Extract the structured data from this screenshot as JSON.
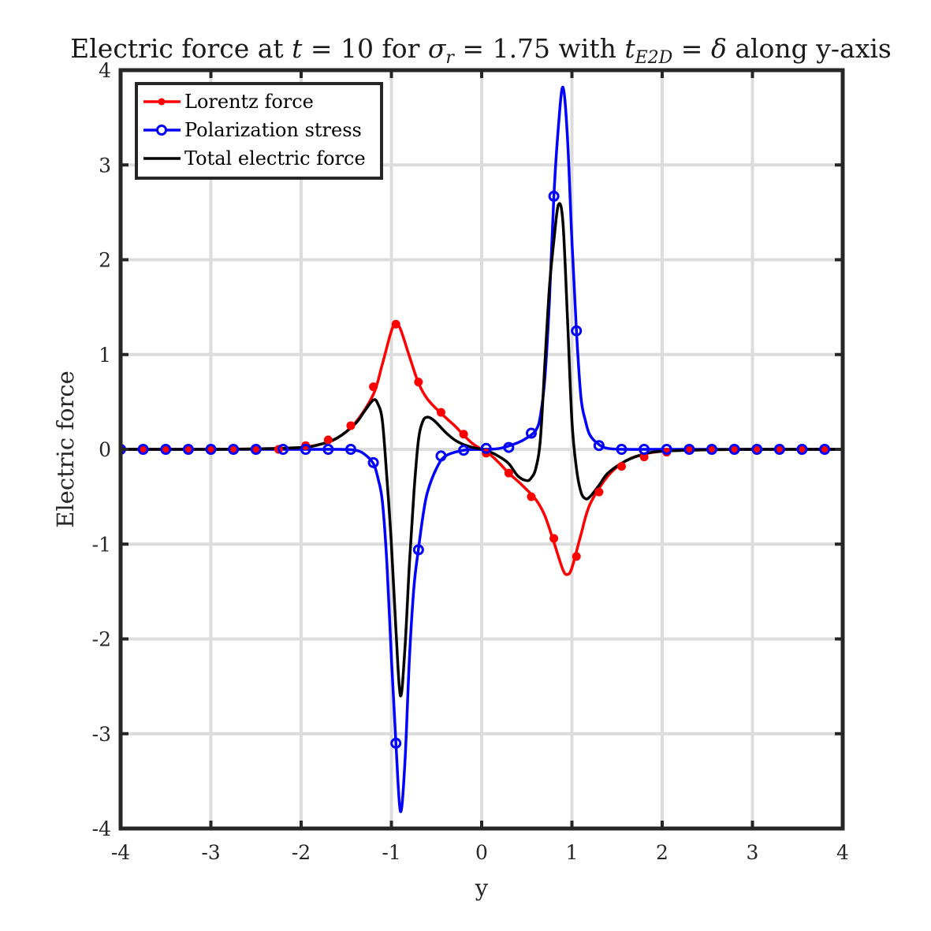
{
  "chart_data": {
    "type": "line",
    "title": {
      "parts": [
        {
          "text": "Electric force at ",
          "style": "normal"
        },
        {
          "text": "t",
          "style": "italic"
        },
        {
          "text": " = 10 for ",
          "style": "normal"
        },
        {
          "text": "σ",
          "style": "italic"
        },
        {
          "text": "r",
          "style": "sub"
        },
        {
          "text": " = 1.75 with ",
          "style": "normal"
        },
        {
          "text": "t",
          "style": "italic"
        },
        {
          "text": "E2D",
          "style": "sub"
        },
        {
          "text": " = ",
          "style": "normal"
        },
        {
          "text": "δ",
          "style": "italic"
        },
        {
          "text": " along y-axis",
          "style": "normal"
        }
      ]
    },
    "xlabel": "y",
    "ylabel": "Electric force",
    "xlim": [
      -4,
      4
    ],
    "ylim": [
      -4,
      4
    ],
    "xticks": [
      -4,
      -3,
      -2,
      -1,
      0,
      1,
      2,
      3,
      4
    ],
    "yticks": [
      -4,
      -3,
      -2,
      -1,
      0,
      1,
      2,
      3,
      4
    ],
    "grid": true,
    "legend_position": "top-left",
    "series": [
      {
        "name": "Lorentz force",
        "color": "#ff0000",
        "marker": "filled-dot",
        "x": [
          -4,
          -3.5,
          -3,
          -2.5,
          -2.2,
          -2,
          -1.8,
          -1.6,
          -1.4,
          -1.2,
          -1.1,
          -1.0,
          -0.95,
          -0.9,
          -0.8,
          -0.7,
          -0.6,
          -0.45,
          -0.3,
          -0.2,
          -0.1,
          0,
          0.1,
          0.2,
          0.3,
          0.45,
          0.6,
          0.7,
          0.8,
          0.9,
          0.95,
          1.0,
          1.1,
          1.2,
          1.4,
          1.6,
          1.8,
          2.0,
          2.2,
          2.5,
          3,
          3.5,
          4
        ],
        "y": [
          0,
          0,
          0,
          0.005,
          0.01,
          0.02,
          0.05,
          0.12,
          0.28,
          0.58,
          0.9,
          1.25,
          1.32,
          1.27,
          0.98,
          0.7,
          0.53,
          0.38,
          0.25,
          0.15,
          0.06,
          0,
          -0.06,
          -0.15,
          -0.25,
          -0.38,
          -0.53,
          -0.7,
          -0.98,
          -1.27,
          -1.32,
          -1.25,
          -0.9,
          -0.58,
          -0.28,
          -0.12,
          -0.05,
          -0.02,
          -0.01,
          -0.005,
          0,
          0,
          0
        ],
        "markers": [
          [
            -4,
            0
          ],
          [
            -3.75,
            0
          ],
          [
            -3.5,
            0
          ],
          [
            -3.25,
            0
          ],
          [
            -3,
            0
          ],
          [
            -2.75,
            0
          ],
          [
            -2.5,
            0
          ],
          [
            -2.25,
            0
          ],
          [
            -1.95,
            0.04
          ],
          [
            -1.7,
            0.1
          ],
          [
            -1.45,
            0.25
          ],
          [
            -1.2,
            0.66
          ],
          [
            -0.95,
            1.32
          ],
          [
            -0.7,
            0.71
          ],
          [
            -0.45,
            0.39
          ],
          [
            -0.2,
            0.16
          ],
          [
            0.05,
            -0.04
          ],
          [
            0.3,
            -0.25
          ],
          [
            0.55,
            -0.5
          ],
          [
            0.8,
            -0.94
          ],
          [
            1.05,
            -1.13
          ],
          [
            1.3,
            -0.45
          ],
          [
            1.55,
            -0.18
          ],
          [
            1.8,
            -0.08
          ],
          [
            2.05,
            -0.03
          ],
          [
            2.3,
            0
          ],
          [
            2.55,
            0
          ],
          [
            2.8,
            0
          ],
          [
            3.05,
            0
          ],
          [
            3.3,
            0
          ],
          [
            3.55,
            0
          ],
          [
            3.8,
            0
          ]
        ]
      },
      {
        "name": "Polarization stress",
        "color": "#0000ff",
        "marker": "open-circle",
        "x": [
          -4,
          -3,
          -2,
          -1.6,
          -1.4,
          -1.3,
          -1.2,
          -1.15,
          -1.1,
          -1.05,
          -1.0,
          -0.95,
          -0.9,
          -0.85,
          -0.8,
          -0.75,
          -0.7,
          -0.65,
          -0.6,
          -0.5,
          -0.4,
          -0.2,
          0,
          0.2,
          0.4,
          0.5,
          0.6,
          0.65,
          0.7,
          0.75,
          0.8,
          0.85,
          0.9,
          0.95,
          1.0,
          1.05,
          1.1,
          1.15,
          1.2,
          1.3,
          1.4,
          1.6,
          2,
          3,
          4
        ],
        "y": [
          0,
          0,
          0,
          0,
          -0.01,
          -0.05,
          -0.15,
          -0.3,
          -0.55,
          -1.2,
          -2.2,
          -3.1,
          -3.82,
          -3.3,
          -2.2,
          -1.45,
          -1.05,
          -0.7,
          -0.45,
          -0.2,
          -0.07,
          -0.01,
          0,
          0.01,
          0.07,
          0.12,
          0.2,
          0.35,
          0.75,
          1.55,
          2.67,
          3.4,
          3.82,
          3.3,
          2.2,
          1.25,
          0.55,
          0.3,
          0.15,
          0.05,
          0.01,
          0,
          0,
          0,
          0
        ],
        "markers": [
          [
            -4,
            0
          ],
          [
            -3.75,
            0
          ],
          [
            -3.5,
            0
          ],
          [
            -3.25,
            0
          ],
          [
            -3,
            0
          ],
          [
            -2.75,
            0
          ],
          [
            -2.5,
            0
          ],
          [
            -2.2,
            0
          ],
          [
            -1.95,
            0
          ],
          [
            -1.7,
            0
          ],
          [
            -1.45,
            0
          ],
          [
            -1.2,
            -0.14
          ],
          [
            -0.95,
            -3.1
          ],
          [
            -0.7,
            -1.06
          ],
          [
            -0.45,
            -0.07
          ],
          [
            -0.2,
            -0.01
          ],
          [
            0.05,
            0.01
          ],
          [
            0.3,
            0.02
          ],
          [
            0.55,
            0.17
          ],
          [
            0.8,
            2.67
          ],
          [
            1.05,
            1.25
          ],
          [
            1.3,
            0.04
          ],
          [
            1.55,
            0
          ],
          [
            1.8,
            0
          ],
          [
            2.05,
            0
          ],
          [
            2.3,
            0
          ],
          [
            2.55,
            0
          ],
          [
            2.8,
            0
          ],
          [
            3.05,
            0
          ],
          [
            3.3,
            0
          ],
          [
            3.55,
            0
          ],
          [
            3.8,
            0
          ]
        ]
      },
      {
        "name": "Total electric force",
        "color": "#000000",
        "marker": "none",
        "x": [
          -4,
          -3,
          -2.5,
          -2,
          -1.8,
          -1.6,
          -1.4,
          -1.3,
          -1.2,
          -1.15,
          -1.1,
          -1.05,
          -1.0,
          -0.95,
          -0.9,
          -0.85,
          -0.8,
          -0.75,
          -0.7,
          -0.65,
          -0.6,
          -0.55,
          -0.5,
          -0.4,
          -0.3,
          -0.2,
          -0.1,
          0,
          0.1,
          0.2,
          0.3,
          0.4,
          0.5,
          0.55,
          0.6,
          0.65,
          0.7,
          0.75,
          0.8,
          0.85,
          0.9,
          0.95,
          1.0,
          1.05,
          1.1,
          1.15,
          1.2,
          1.3,
          1.4,
          1.6,
          1.8,
          2.0,
          2.5,
          3,
          4
        ],
        "y": [
          0,
          0,
          0.005,
          0.02,
          0.05,
          0.12,
          0.27,
          0.4,
          0.52,
          0.48,
          0.3,
          -0.3,
          -1.0,
          -1.9,
          -2.6,
          -2.1,
          -1.2,
          -0.45,
          0.1,
          0.3,
          0.34,
          0.32,
          0.28,
          0.18,
          0.1,
          0.05,
          0.02,
          0,
          -0.03,
          -0.08,
          -0.15,
          -0.28,
          -0.33,
          -0.3,
          -0.2,
          0.1,
          0.9,
          1.7,
          2.2,
          2.58,
          2.4,
          1.4,
          0.3,
          -0.2,
          -0.45,
          -0.52,
          -0.5,
          -0.38,
          -0.25,
          -0.12,
          -0.05,
          -0.02,
          -0.005,
          0,
          0
        ]
      }
    ]
  }
}
